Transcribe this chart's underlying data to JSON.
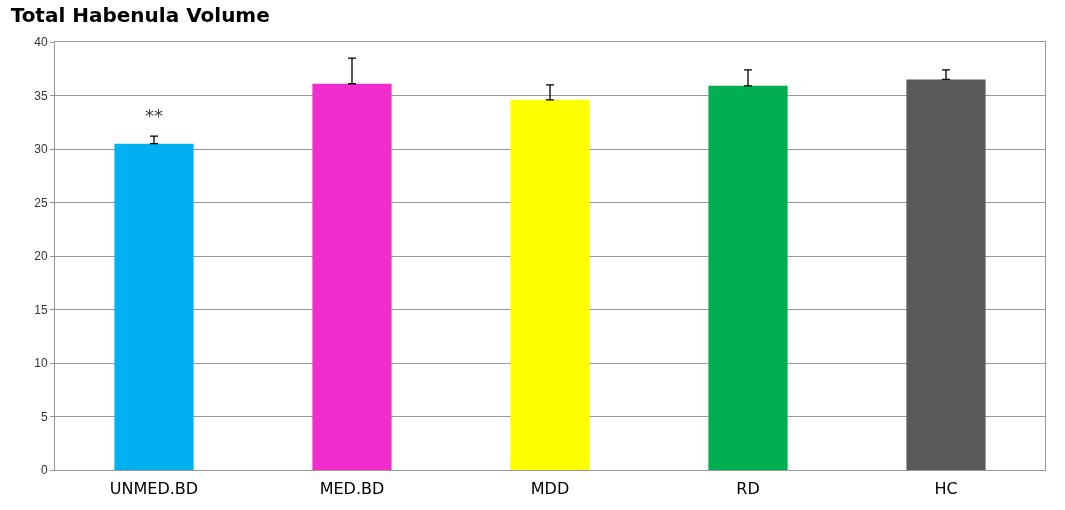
{
  "chart_data": {
    "type": "bar",
    "title": "Total Habenula Volume",
    "categories": [
      "UNMED.BD",
      "MED.BD",
      "MDD",
      "RD",
      "HC"
    ],
    "values": [
      30.5,
      36.1,
      34.6,
      35.9,
      36.5
    ],
    "colors": [
      "#00b0f0",
      "#f02ccc",
      "#ffff00",
      "#00b050",
      "#595959"
    ],
    "errors": [
      [
        30.5,
        31.2
      ],
      [
        36.1,
        38.5
      ],
      [
        34.6,
        36.0
      ],
      [
        35.9,
        37.4
      ],
      [
        36.5,
        37.4
      ]
    ],
    "annotations": [
      "**"
    ],
    "ylim": [
      0,
      40
    ],
    "yticks": [
      0,
      5,
      10,
      15,
      20,
      25,
      30,
      35,
      40
    ],
    "grid": "y"
  }
}
